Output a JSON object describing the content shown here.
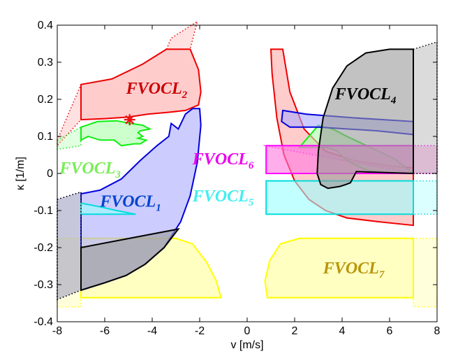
{
  "chart_data": {
    "type": "area",
    "title": "",
    "xlabel": "v [m/s]",
    "ylabel": "κ [1/m]",
    "xlim": [
      -8,
      8
    ],
    "ylim": [
      -0.4,
      0.4
    ],
    "xticks": [
      "-8",
      "-6",
      "-4",
      "-2",
      "0",
      "2",
      "4",
      "6",
      "8"
    ],
    "yticks": [
      "0.4",
      "0.3",
      "0.2",
      "0.1",
      "0",
      "-0.1",
      "-0.2",
      "-0.3",
      "-0.4"
    ],
    "grid": false,
    "marker": {
      "shape": "asterisk",
      "color": "#ee1111",
      "x": -4.95,
      "y": 0.145
    },
    "regions": [
      {
        "id": "fvocl7",
        "label": "FVOCL",
        "sub": "7",
        "color": "#ffff00",
        "fill": "#ffff99",
        "label_color": "#b8960a",
        "label_at": [
          3.2,
          -0.27
        ],
        "faint": [
          [
            [
              -8,
              -0.175
            ],
            [
              -7,
              -0.175
            ],
            [
              -7,
              -0.36
            ],
            [
              -8,
              -0.36
            ]
          ],
          [
            [
              7,
              -0.175
            ],
            [
              8,
              -0.175
            ],
            [
              8,
              -0.36
            ],
            [
              7,
              -0.36
            ]
          ]
        ],
        "polys": [
          [
            [
              -7,
              -0.175
            ],
            [
              -3,
              -0.175
            ],
            [
              -2.3,
              -0.19
            ],
            [
              -1.7,
              -0.24
            ],
            [
              -1.3,
              -0.29
            ],
            [
              -1.1,
              -0.335
            ],
            [
              -7,
              -0.335
            ]
          ],
          [
            [
              0.85,
              -0.335
            ],
            [
              0.75,
              -0.29
            ],
            [
              0.95,
              -0.235
            ],
            [
              1.4,
              -0.19
            ],
            [
              2.2,
              -0.175
            ],
            [
              7,
              -0.175
            ],
            [
              7,
              -0.335
            ]
          ]
        ]
      },
      {
        "id": "fvocl2",
        "label": "FVOCL",
        "sub": "2",
        "color": "#ee0000",
        "fill": "#ffaaaa",
        "label_color": "#cc0000",
        "label_at": [
          -5.1,
          0.215
        ],
        "faint": [
          [
            [
              -8,
              0.09
            ],
            [
              -7,
              0.24
            ],
            [
              -7,
              0.145
            ],
            [
              -8,
              0.075
            ]
          ],
          [
            [
              -3.4,
              0.335
            ],
            [
              -2.4,
              0.335
            ],
            [
              -2.1,
              0.41
            ],
            [
              -3.2,
              0.365
            ]
          ]
        ],
        "polys": [
          [
            [
              -7,
              0.24
            ],
            [
              -5.7,
              0.255
            ],
            [
              -4.4,
              0.295
            ],
            [
              -3.4,
              0.335
            ],
            [
              -2.4,
              0.335
            ],
            [
              -2.05,
              0.28
            ],
            [
              -1.95,
              0.22
            ],
            [
              -2.05,
              0.185
            ],
            [
              -2.6,
              0.17
            ],
            [
              -3.3,
              0.165
            ],
            [
              -4.2,
              0.16
            ],
            [
              -5,
              0.152
            ],
            [
              -6,
              0.148
            ],
            [
              -7,
              0.145
            ]
          ],
          [
            [
              1.0,
              0.335
            ],
            [
              1.5,
              0.335
            ],
            [
              1.8,
              0.22
            ],
            [
              2.4,
              0.12
            ],
            [
              3.3,
              0.06
            ],
            [
              4.5,
              0.035
            ],
            [
              6,
              0.02
            ],
            [
              7,
              0.015
            ],
            [
              7,
              -0.14
            ],
            [
              5.5,
              -0.13
            ],
            [
              4.2,
              -0.12
            ],
            [
              3.3,
              -0.1
            ],
            [
              2.6,
              -0.07
            ],
            [
              2.0,
              -0.02
            ],
            [
              1.55,
              0.05
            ],
            [
              1.25,
              0.15
            ],
            [
              1.05,
              0.27
            ]
          ]
        ]
      },
      {
        "id": "fvocl3",
        "label": "FVOCL",
        "sub": "3",
        "color": "#11ee11",
        "fill": "#aaffaa",
        "label_color": "#77ee55",
        "label_at": [
          -7.9,
          0.0
        ],
        "faint": [
          [
            [
              -8,
              0.09
            ],
            [
              -7,
              0.125
            ],
            [
              -7,
              0.075
            ],
            [
              -8,
              0.065
            ]
          ]
        ],
        "polys": [
          [
            [
              -7,
              0.125
            ],
            [
              -6.3,
              0.14
            ],
            [
              -5.5,
              0.142
            ],
            [
              -4.9,
              0.135
            ],
            [
              -4.4,
              0.13
            ],
            [
              -4.1,
              0.12
            ],
            [
              -4.5,
              0.115
            ],
            [
              -4.6,
              0.11
            ],
            [
              -4.4,
              0.1
            ],
            [
              -4.6,
              0.095
            ],
            [
              -4.25,
              0.09
            ],
            [
              -4.5,
              0.08
            ],
            [
              -4.75,
              0.08
            ],
            [
              -5.3,
              0.075
            ],
            [
              -5.6,
              0.09
            ],
            [
              -6.2,
              0.09
            ],
            [
              -6.7,
              0.1
            ],
            [
              -7,
              0.09
            ]
          ],
          [
            [
              2.2,
              0.07
            ],
            [
              3.0,
              0.13
            ],
            [
              3.6,
              0.12
            ],
            [
              4.2,
              0.1
            ],
            [
              5.2,
              0.07
            ],
            [
              6.2,
              0.04
            ],
            [
              7,
              0.0
            ],
            [
              6,
              0.0
            ],
            [
              5,
              0.01
            ],
            [
              4.5,
              0.025
            ],
            [
              4.1,
              0.04
            ],
            [
              3.8,
              0.06
            ],
            [
              3.4,
              0.07
            ]
          ]
        ]
      },
      {
        "id": "fvocl1",
        "label": "FVOCL",
        "sub": "1",
        "color": "#0000dd",
        "fill": "#aaaaff",
        "label_color": "#0044cc",
        "label_at": [
          -6.2,
          -0.09
        ],
        "faint": [
          [
            [
              -8,
              -0.07
            ],
            [
              -7,
              -0.05
            ],
            [
              -7,
              -0.315
            ],
            [
              -8,
              -0.34
            ]
          ]
        ],
        "polys": [
          [
            [
              -7,
              -0.055
            ],
            [
              -6.2,
              -0.045
            ],
            [
              -5.3,
              -0.015
            ],
            [
              -4.5,
              0.035
            ],
            [
              -3.8,
              0.075
            ],
            [
              -3.3,
              0.1
            ],
            [
              -3.2,
              0.135
            ],
            [
              -2.9,
              0.12
            ],
            [
              -2.6,
              0.16
            ],
            [
              -2.3,
              0.175
            ],
            [
              -2.0,
              0.175
            ],
            [
              -1.95,
              0.13
            ],
            [
              -2.1,
              0.03
            ],
            [
              -2.4,
              -0.06
            ],
            [
              -2.8,
              -0.13
            ],
            [
              -3.5,
              -0.2
            ],
            [
              -4.3,
              -0.245
            ],
            [
              -5.1,
              -0.275
            ],
            [
              -6,
              -0.295
            ],
            [
              -7,
              -0.315
            ]
          ],
          [
            [
              1.5,
              0.17
            ],
            [
              2.5,
              0.16
            ],
            [
              4.5,
              0.15
            ],
            [
              7,
              0.14
            ],
            [
              7,
              0.105
            ],
            [
              5.5,
              0.115
            ],
            [
              3,
              0.125
            ],
            [
              1.8,
              0.125
            ],
            [
              1.45,
              0.14
            ]
          ]
        ]
      },
      {
        "id": "fvocl6",
        "label": "FVOCL",
        "sub": "6",
        "color": "#ff00ff",
        "fill": "#ff77dd",
        "label_color": "#ee00ee",
        "label_at": [
          -2.3,
          0.025
        ],
        "faint": [
          [
            [
              0.7,
              0.075
            ],
            [
              7,
              0.075
            ],
            [
              8,
              0.075
            ],
            [
              8,
              0.0
            ],
            [
              7,
              0.0
            ]
          ]
        ],
        "polys": [
          [
            [
              0.8,
              0.075
            ],
            [
              7,
              0.075
            ],
            [
              7,
              0.0
            ],
            [
              0.8,
              0.0
            ]
          ]
        ]
      },
      {
        "id": "fvocl5",
        "label": "FVOCL",
        "sub": "5",
        "color": "#00dddd",
        "fill": "#99ffff",
        "label_color": "#44eeee",
        "label_at": [
          -2.3,
          -0.075
        ],
        "faint": [
          [
            [
              7,
              -0.02
            ],
            [
              8,
              -0.02
            ],
            [
              8,
              -0.11
            ],
            [
              7,
              -0.11
            ]
          ]
        ],
        "polys": [
          [
            [
              0.8,
              -0.02
            ],
            [
              7,
              -0.02
            ],
            [
              7,
              -0.11
            ],
            [
              0.8,
              -0.11
            ]
          ],
          [
            [
              -7,
              -0.08
            ],
            [
              -6.2,
              -0.09
            ],
            [
              -5.5,
              -0.1
            ],
            [
              -4.7,
              -0.11
            ],
            [
              -7,
              -0.11
            ]
          ]
        ]
      },
      {
        "id": "fvocl4",
        "label": "FVOCL",
        "sub": "4",
        "color": "#000000",
        "fill": "#999999",
        "label_color": "#000000",
        "label_at": [
          3.7,
          0.2
        ],
        "faint": [
          [
            [
              7,
              0.335
            ],
            [
              8,
              0.355
            ],
            [
              8,
              0.0
            ],
            [
              7,
              0.0
            ]
          ],
          [
            [
              -8,
              -0.07
            ],
            [
              -7,
              -0.05
            ],
            [
              -7,
              -0.315
            ],
            [
              -8,
              -0.34
            ]
          ]
        ],
        "polys": [
          [
            [
              6.0,
              0.335
            ],
            [
              7,
              0.335
            ],
            [
              7,
              0.0
            ],
            [
              4.6,
              0.005
            ],
            [
              4.35,
              -0.025
            ],
            [
              4.15,
              -0.03
            ],
            [
              3.9,
              -0.035
            ],
            [
              3.4,
              -0.04
            ],
            [
              3.1,
              -0.03
            ],
            [
              2.95,
              0.0
            ],
            [
              3.0,
              0.06
            ],
            [
              3.2,
              0.15
            ],
            [
              3.6,
              0.23
            ],
            [
              4.2,
              0.29
            ],
            [
              5.0,
              0.325
            ]
          ],
          [
            [
              -7,
              -0.2
            ],
            [
              -7,
              -0.315
            ],
            [
              -6,
              -0.295
            ],
            [
              -5.1,
              -0.275
            ],
            [
              -4.3,
              -0.245
            ],
            [
              -3.5,
              -0.2
            ],
            [
              -2.9,
              -0.15
            ]
          ]
        ]
      }
    ]
  }
}
